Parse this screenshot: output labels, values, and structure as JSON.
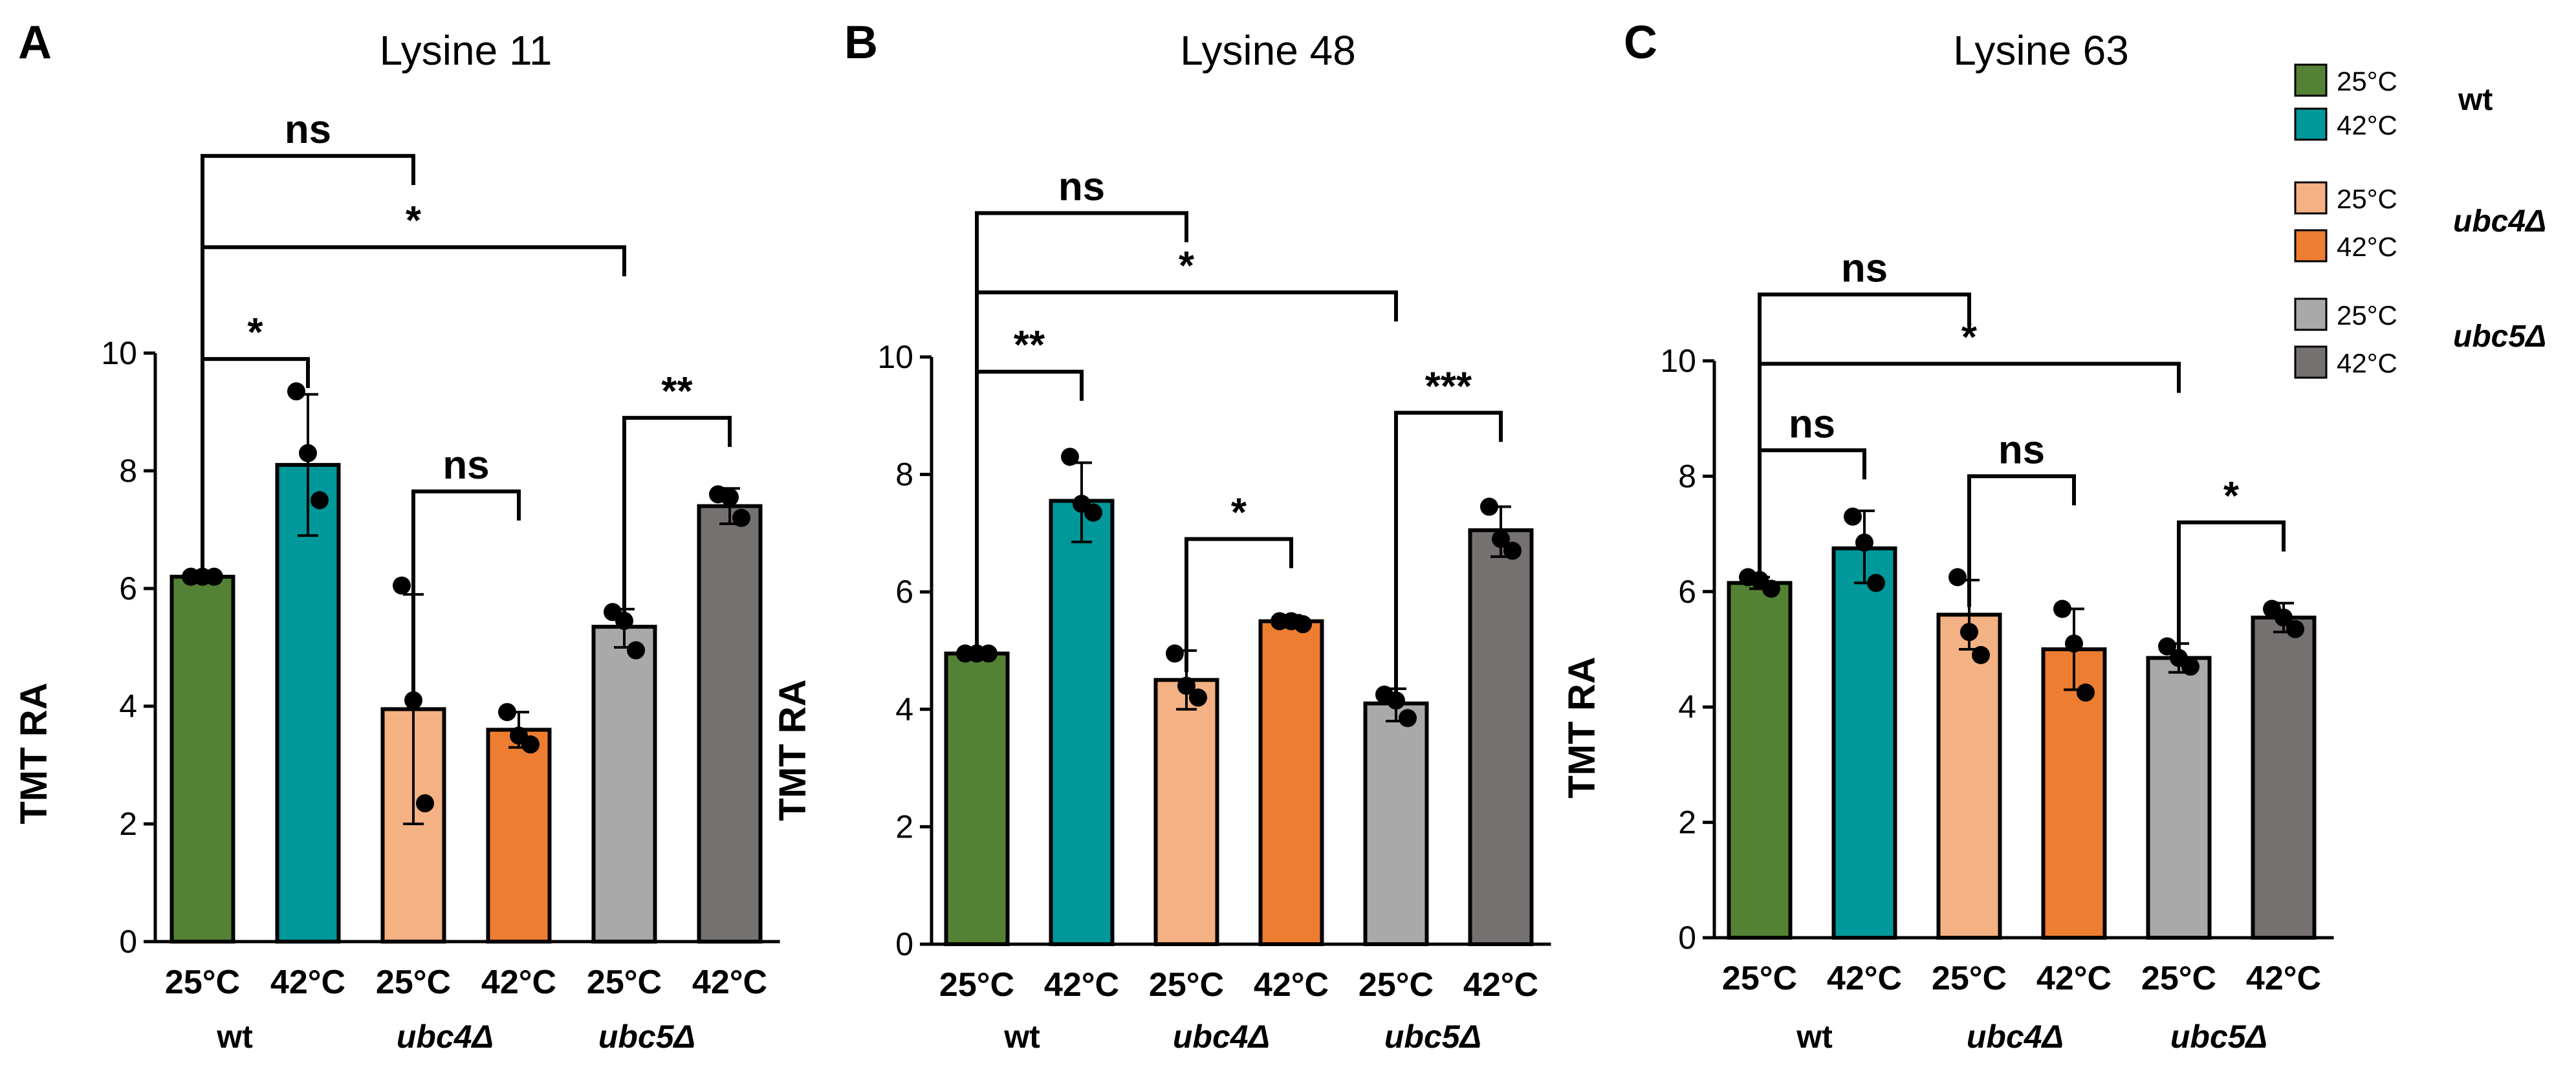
{
  "chart_data": [
    {
      "type": "bar",
      "panel_letter": "A",
      "title": "Lysine 11",
      "ylabel": "TMT RA",
      "ylim": [
        0,
        10
      ],
      "yticks": [
        "0",
        "2",
        "4",
        "6",
        "8",
        "10"
      ],
      "categories": [
        "25°C",
        "42°C",
        "25°C",
        "42°C",
        "25°C",
        "42°C"
      ],
      "groups": [
        "wt",
        "ubc4Δ",
        "ubc5Δ"
      ],
      "values": [
        6.2,
        8.1,
        3.95,
        3.6,
        5.35,
        7.4
      ],
      "error_low": [
        6.15,
        6.9,
        2.0,
        3.3,
        5.0,
        7.1
      ],
      "error_high": [
        6.25,
        9.3,
        5.9,
        3.9,
        5.65,
        7.7
      ],
      "points": [
        [
          6.2,
          6.2,
          6.2
        ],
        [
          9.35,
          8.3,
          7.5
        ],
        [
          6.05,
          4.1,
          2.35
        ],
        [
          3.9,
          3.5,
          3.35
        ],
        [
          5.6,
          5.45,
          4.95
        ],
        [
          7.6,
          7.55,
          7.2
        ]
      ],
      "comparisons": [
        {
          "from": 0,
          "to": 1,
          "label": "*",
          "y": 9.9
        },
        {
          "from": 2,
          "to": 3,
          "label": "ns",
          "y": 7.65
        },
        {
          "from": 4,
          "to": 5,
          "label": "**",
          "y": 8.9
        },
        {
          "from": 0,
          "to": 2,
          "label": "ns",
          "y": 13.35
        },
        {
          "from": 0,
          "to": 4,
          "label": "*",
          "y": 11.8
        }
      ]
    },
    {
      "type": "bar",
      "panel_letter": "B",
      "title": "Lysine 48",
      "ylabel": "TMT RA",
      "ylim": [
        0,
        10
      ],
      "yticks": [
        "0",
        "2",
        "4",
        "6",
        "8",
        "10"
      ],
      "categories": [
        "25°C",
        "42°C",
        "25°C",
        "42°C",
        "25°C",
        "42°C"
      ],
      "groups": [
        "wt",
        "ubc4Δ",
        "ubc5Δ"
      ],
      "values": [
        4.95,
        7.55,
        4.5,
        5.5,
        4.1,
        7.05
      ],
      "error_low": [
        4.9,
        6.85,
        4.0,
        5.4,
        3.8,
        6.6
      ],
      "error_high": [
        5.0,
        8.2,
        5.0,
        5.6,
        4.35,
        7.45
      ],
      "points": [
        [
          4.95,
          4.95,
          4.95
        ],
        [
          8.3,
          7.5,
          7.35
        ],
        [
          4.95,
          4.4,
          4.2
        ],
        [
          5.5,
          5.5,
          5.45
        ],
        [
          4.25,
          4.15,
          3.85
        ],
        [
          7.45,
          6.9,
          6.7
        ]
      ],
      "comparisons": [
        {
          "from": 0,
          "to": 1,
          "label": "**",
          "y": 9.75
        },
        {
          "from": 2,
          "to": 3,
          "label": "*",
          "y": 6.9
        },
        {
          "from": 4,
          "to": 5,
          "label": "***",
          "y": 9.05
        },
        {
          "from": 0,
          "to": 2,
          "label": "ns",
          "y": 12.45
        },
        {
          "from": 0,
          "to": 4,
          "label": "*",
          "y": 11.1
        }
      ]
    },
    {
      "type": "bar",
      "panel_letter": "C",
      "title": "Lysine 63",
      "ylabel": "TMT RA",
      "ylim": [
        0,
        10
      ],
      "yticks": [
        "0",
        "2",
        "4",
        "6",
        "8",
        "10"
      ],
      "categories": [
        "25°C",
        "42°C",
        "25°C",
        "42°C",
        "25°C",
        "42°C"
      ],
      "groups": [
        "wt",
        "ubc4Δ",
        "ubc5Δ"
      ],
      "values": [
        6.15,
        6.75,
        5.6,
        5.0,
        4.85,
        5.55
      ],
      "error_low": [
        6.05,
        6.15,
        5.0,
        4.3,
        4.6,
        5.3
      ],
      "error_high": [
        6.25,
        7.4,
        6.2,
        5.7,
        5.1,
        5.8
      ],
      "points": [
        [
          6.25,
          6.2,
          6.05
        ],
        [
          7.3,
          6.85,
          6.15
        ],
        [
          6.25,
          5.3,
          4.9
        ],
        [
          5.7,
          5.1,
          4.25
        ],
        [
          5.05,
          4.85,
          4.7
        ],
        [
          5.7,
          5.55,
          5.35
        ]
      ],
      "comparisons": [
        {
          "from": 0,
          "to": 1,
          "label": "ns",
          "y": 8.45
        },
        {
          "from": 2,
          "to": 3,
          "label": "ns",
          "y": 8.0
        },
        {
          "from": 4,
          "to": 5,
          "label": "*",
          "y": 7.2
        },
        {
          "from": 0,
          "to": 2,
          "label": "ns",
          "y": 11.15
        },
        {
          "from": 0,
          "to": 4,
          "label": "*",
          "y": 9.95
        }
      ]
    }
  ],
  "legend": {
    "entries": [
      {
        "temp": "25°C",
        "color": "#548235"
      },
      {
        "temp": "42°C",
        "color": "#00989A"
      },
      {
        "temp": "25°C",
        "color": "#F4B183"
      },
      {
        "temp": "42°C",
        "color": "#ED7D31"
      },
      {
        "temp": "25°C",
        "color": "#A9A9A9"
      },
      {
        "temp": "42°C",
        "color": "#767171"
      }
    ],
    "genotypes": [
      "wt",
      "ubc4Δ",
      "ubc5Δ"
    ]
  },
  "colors": {
    "wt_25": "#548235",
    "wt_42": "#00989A",
    "ubc4_25": "#F4B183",
    "ubc4_42": "#ED7D31",
    "ubc5_25": "#A9A9A9",
    "ubc5_42": "#767171"
  }
}
